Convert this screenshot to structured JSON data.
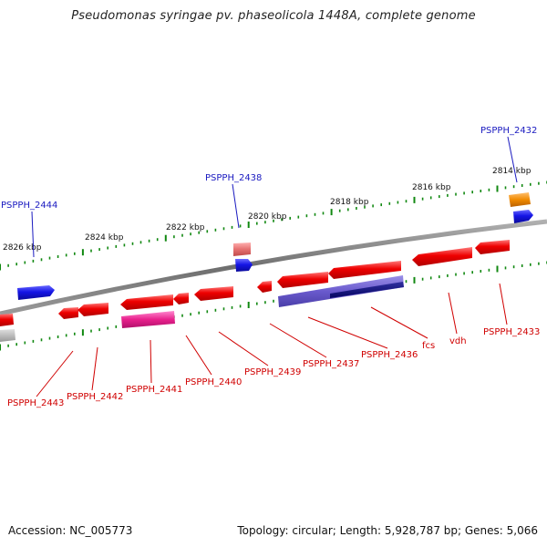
{
  "title": "Pseudomonas syringae pv. phaseolicola 1448A, complete genome",
  "footer": {
    "accession": "Accession: NC_005773",
    "topology": "Topology: circular; Length: 5,928,787 bp; Genes: 5,066"
  },
  "kbp_labels": [
    "2826 kbp",
    "2824 kbp",
    "2822 kbp",
    "2820 kbp",
    "2818 kbp",
    "2816 kbp",
    "2814 kbp"
  ],
  "top_genes": [
    "PSPPH_2444",
    "PSPPH_2438",
    "PSPPH_2432"
  ],
  "bottom_genes": [
    "PSPPH_2443",
    "PSPPH_2442",
    "PSPPH_2441",
    "PSPPH_2440",
    "PSPPH_2439",
    "PSPPH_2437",
    "PSPPH_2436",
    "fcs",
    "vdh",
    "PSPPH_2433"
  ],
  "colors": {
    "forward_gene": "#1515e6",
    "reverse_gene": "#e60000",
    "tick": "#118811",
    "backbone": "#7a7a7a",
    "top_label": "#1a1ac0",
    "bottom_label": "#d00000",
    "pink_gene": "#e8208c",
    "orange_gene": "#f08a00",
    "salmon_gene": "#e57070",
    "lavender_gene": "#6a5acd",
    "navy_gene": "#0a0a7a",
    "gray_gene": "#b0b0b0"
  }
}
